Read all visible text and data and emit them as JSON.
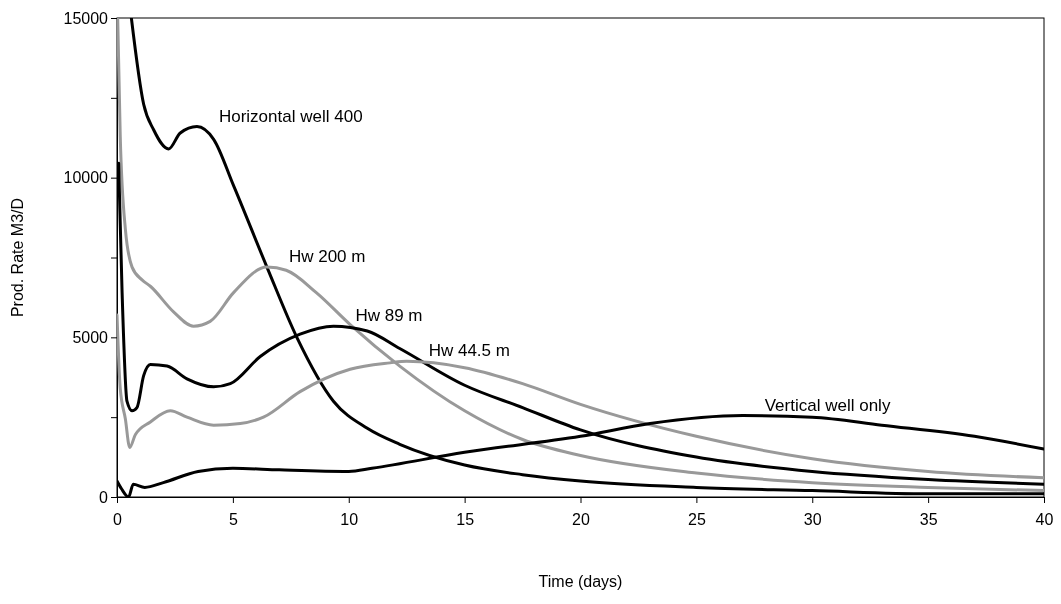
{
  "chart_data": {
    "type": "line",
    "xlabel": "Time (days)",
    "ylabel": "Prod. Rate M3/D",
    "xlim": [
      0,
      40
    ],
    "ylim": [
      0,
      15000
    ],
    "xticks": [
      0,
      5,
      10,
      15,
      20,
      25,
      30,
      35,
      40
    ],
    "yticks": [
      0,
      {
        "value": 2500,
        "label": null
      },
      5000,
      {
        "value": 7500,
        "label": null
      },
      10000,
      {
        "value": 12500,
        "label": null
      },
      15000
    ],
    "grid": false,
    "legend": false,
    "marker": "none",
    "line_style": "solid",
    "series": [
      {
        "name": "Horizontal well 400",
        "color": "#000000",
        "x": [
          0.62,
          1.15,
          1.58,
          2.23,
          2.73,
          3.45,
          4.17,
          5.03,
          6.47,
          7.76,
          9.34,
          10.8,
          12.2,
          15,
          17.5,
          20,
          25,
          30,
          35,
          40
        ],
        "values": [
          15000,
          12300,
          11500,
          10900,
          11400,
          11600,
          11200,
          9750,
          7200,
          5000,
          3000,
          2150,
          1650,
          1000,
          700,
          500,
          300,
          200,
          100,
          100
        ]
      },
      {
        "name": "Hw 200 m",
        "color": "#999999",
        "x": [
          0.03,
          0.14,
          0.36,
          0.65,
          1.08,
          1.44,
          2.44,
          3.3,
          4.02,
          5.03,
          6.47,
          7.3,
          8.6,
          10.06,
          12.2,
          15,
          17.5,
          20,
          25,
          30,
          35,
          40
        ],
        "values": [
          15000,
          11300,
          8400,
          7200,
          6800,
          6600,
          5800,
          5350,
          5500,
          6400,
          7200,
          7100,
          6400,
          5400,
          4100,
          2700,
          1800,
          1300,
          750,
          450,
          300,
          200
        ]
      },
      {
        "name": "Hw 89 m",
        "color": "#000000",
        "x": [
          0.07,
          0.22,
          0.43,
          0.65,
          0.86,
          1.15,
          1.44,
          2.16,
          3.02,
          4.17,
          4.89,
          6.18,
          7.9,
          9.34,
          10.8,
          12.2,
          15,
          17.5,
          20,
          25,
          30,
          35,
          40
        ],
        "values": [
          10450,
          6400,
          3000,
          2700,
          2800,
          3800,
          4150,
          4100,
          3700,
          3450,
          3550,
          4400,
          5100,
          5350,
          5200,
          4650,
          3500,
          2800,
          2100,
          1250,
          800,
          550,
          400
        ]
      },
      {
        "name": "Hw 44.5 m",
        "color": "#999999",
        "x": [
          0,
          0.14,
          0.36,
          0.55,
          0.79,
          1.44,
          2.3,
          3.02,
          4.17,
          5.32,
          6.32,
          7.9,
          10.06,
          11.78,
          12.5,
          15,
          17.5,
          20,
          25,
          30,
          35,
          40
        ],
        "values": [
          5700,
          3400,
          2450,
          1550,
          1950,
          2350,
          2700,
          2500,
          2250,
          2300,
          2500,
          3300,
          4000,
          4200,
          4250,
          4050,
          3550,
          2900,
          1900,
          1200,
          800,
          600
        ]
      },
      {
        "name": "Vertical well only",
        "color": "#000000",
        "x": [
          0,
          0.2,
          0.5,
          0.7,
          1.2,
          2,
          3.5,
          5,
          7,
          10,
          11,
          15,
          20,
          23,
          27,
          30,
          33,
          37,
          40
        ],
        "values": [
          500,
          250,
          0,
          400,
          300,
          450,
          800,
          900,
          850,
          800,
          900,
          1400,
          1900,
          2300,
          2550,
          2500,
          2250,
          1900,
          1500
        ]
      }
    ]
  }
}
